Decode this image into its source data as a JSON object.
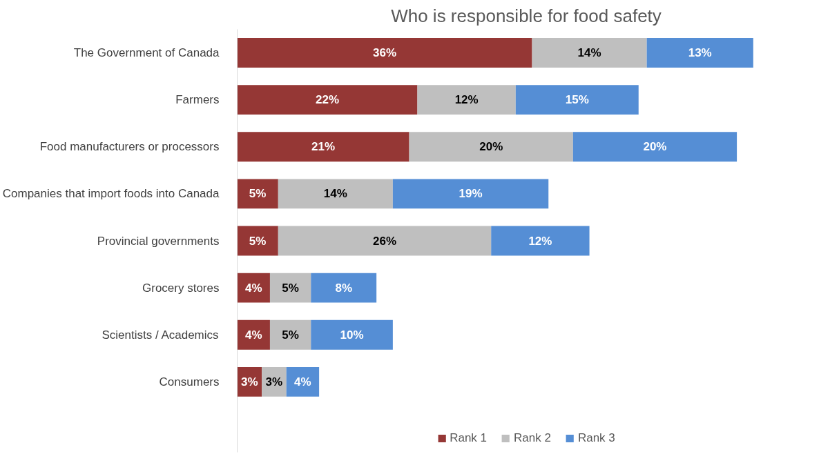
{
  "chart_data": {
    "type": "bar",
    "orientation": "horizontal",
    "stacked": true,
    "title": "Who is responsible for food safety",
    "categories": [
      "The Government of Canada",
      "Farmers",
      "Food manufacturers or processors",
      "Companies that import foods into Canada",
      "Provincial governments",
      "Grocery stores",
      "Scientists / Academics",
      "Consumers"
    ],
    "series": [
      {
        "name": "Rank 1",
        "color": "#953735",
        "values": [
          36,
          22,
          21,
          5,
          5,
          4,
          4,
          3
        ],
        "value_labels": [
          "36%",
          "22%",
          "21%",
          "5%",
          "5%",
          "4%",
          "4%",
          "3%"
        ]
      },
      {
        "name": "Rank 2",
        "color": "#bfbfbf",
        "values": [
          14,
          12,
          20,
          14,
          26,
          5,
          5,
          3
        ],
        "value_labels": [
          "14%",
          "12%",
          "20%",
          "14%",
          "26%",
          "5%",
          "5%",
          "3%"
        ]
      },
      {
        "name": "Rank 3",
        "color": "#558ed5",
        "values": [
          13,
          15,
          20,
          19,
          12,
          8,
          10,
          4
        ],
        "value_labels": [
          "13%",
          "15%",
          "20%",
          "19%",
          "12%",
          "8%",
          "10%",
          "4%"
        ]
      }
    ],
    "legend": "bottom",
    "grid": false
  }
}
